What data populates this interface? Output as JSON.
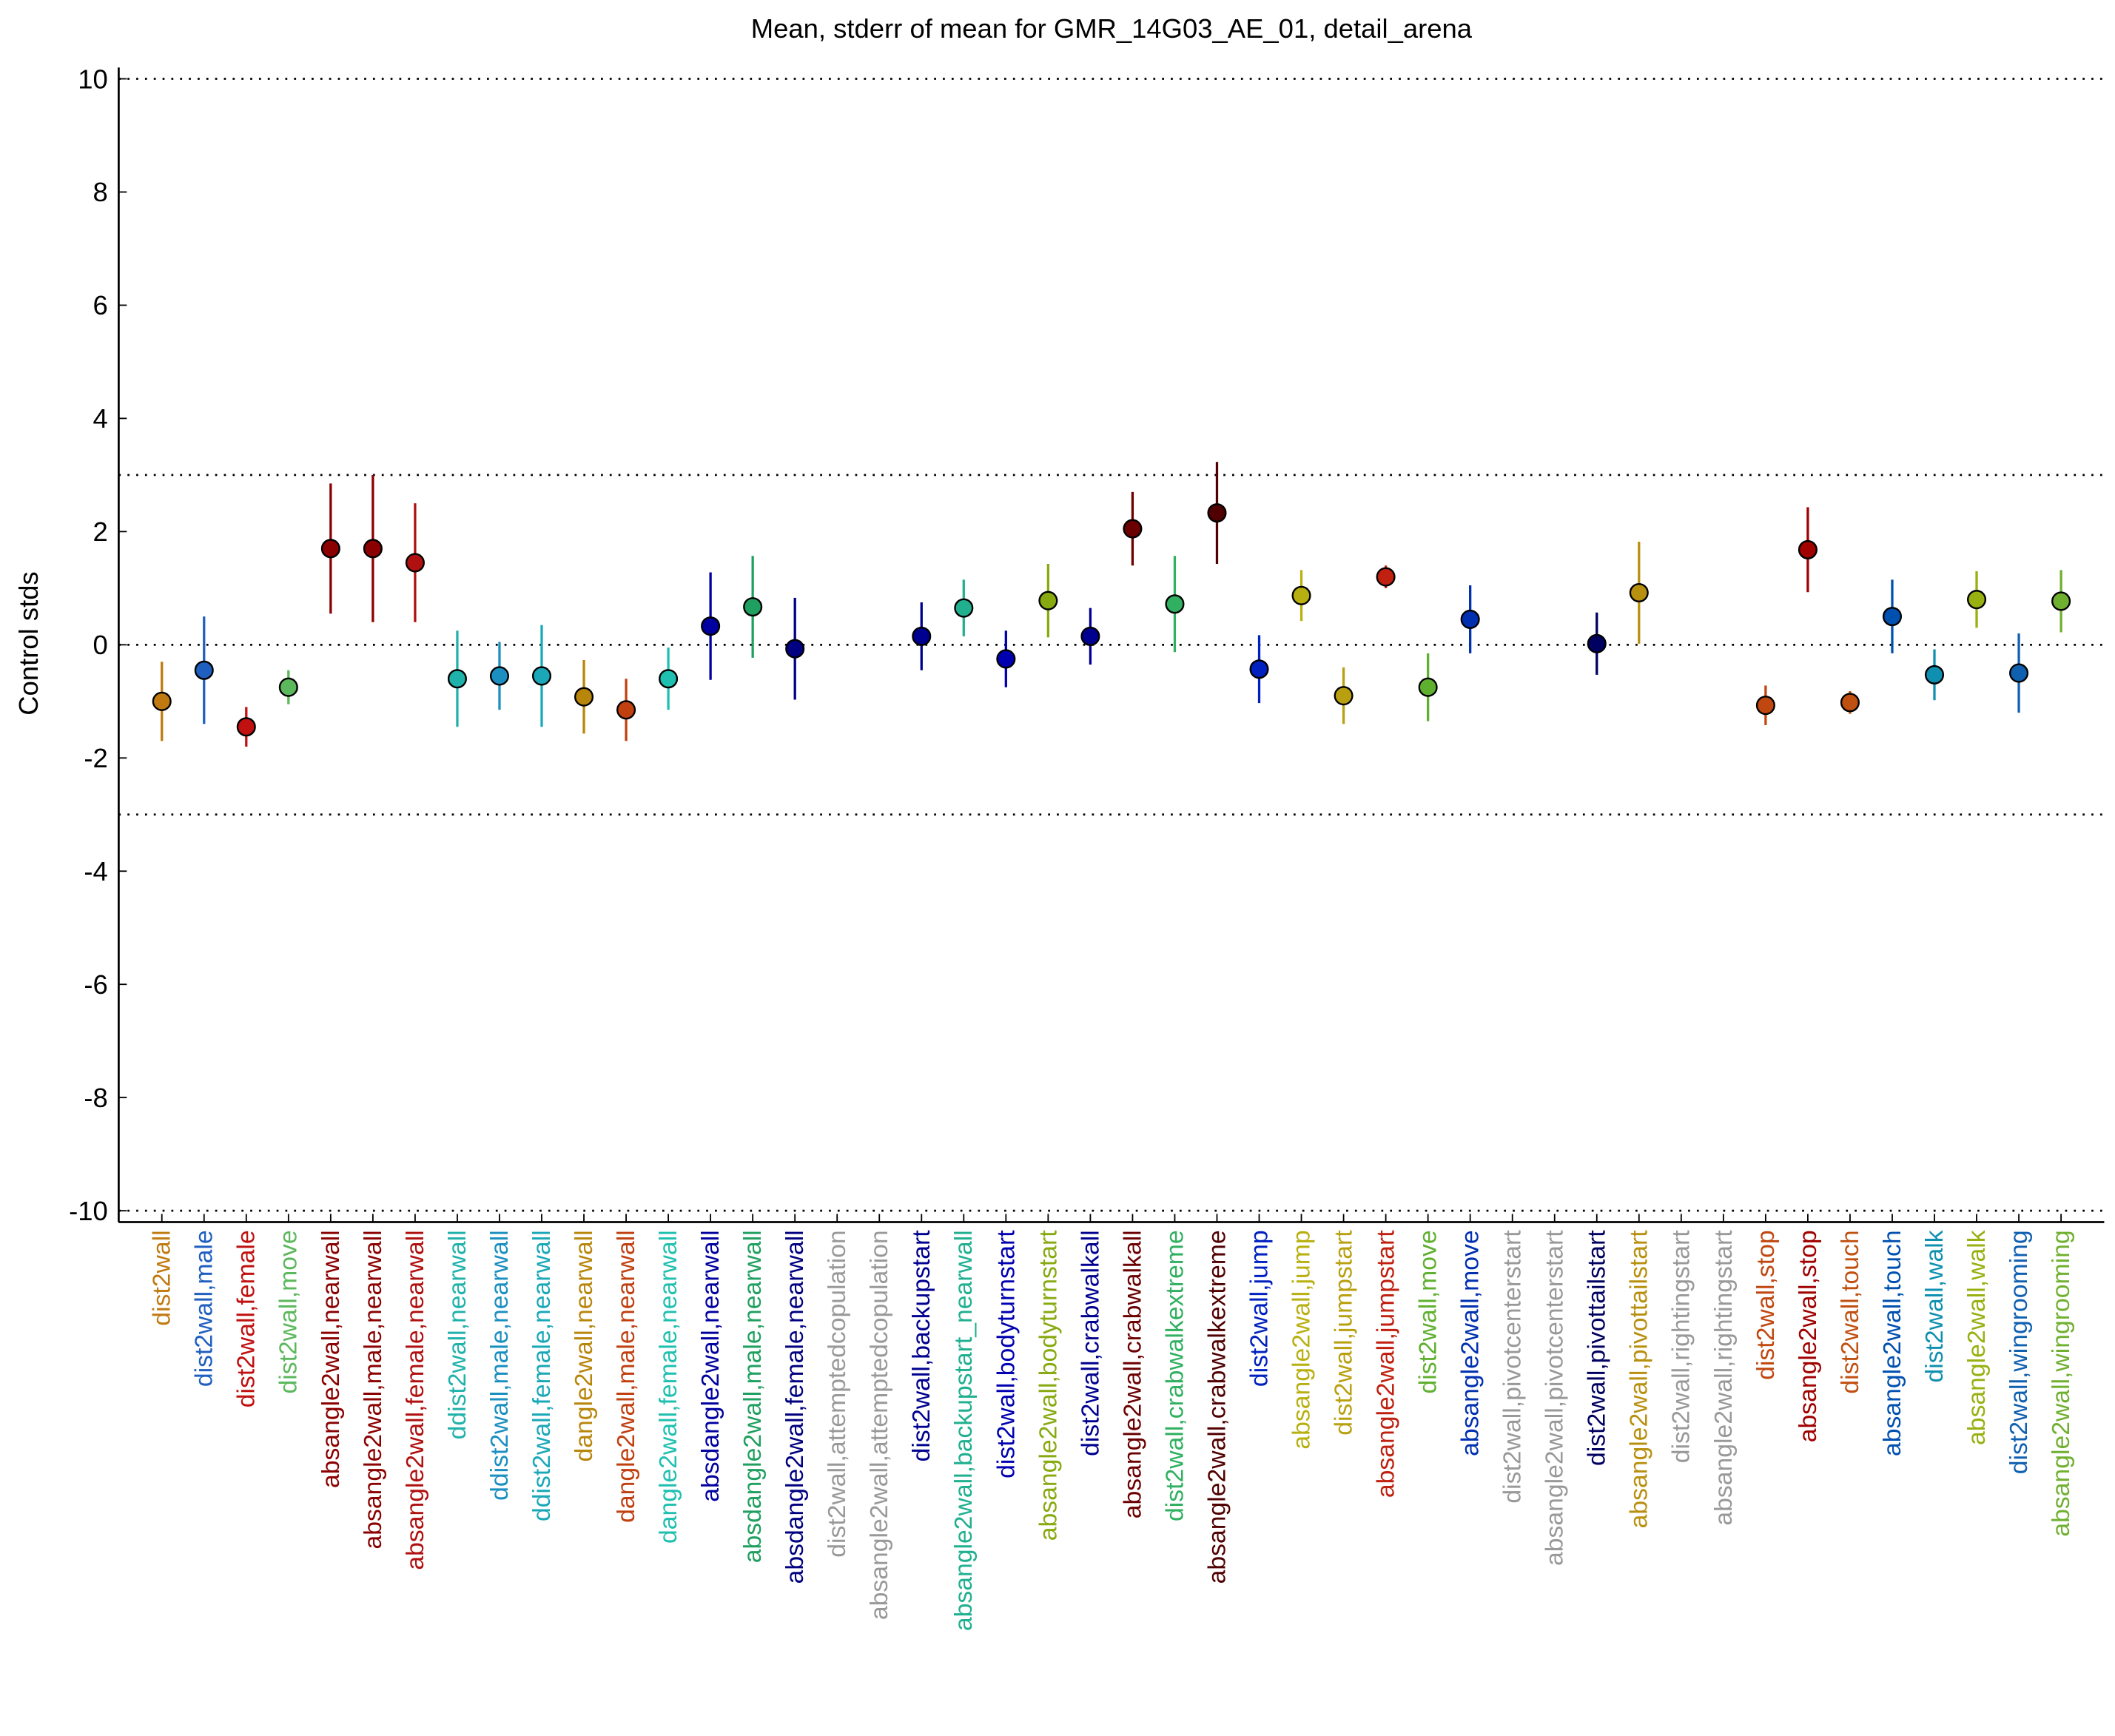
{
  "chart_data": {
    "type": "errorbar",
    "title": "Mean, stderr of mean for GMR_14G03_AE_01, detail_arena",
    "ylabel": "Control stds",
    "categories": [
      "dist2wall",
      "dist2wall,male",
      "dist2wall,female",
      "dist2wall,move",
      "absangle2wall,nearwall",
      "absangle2wall,male,nearwall",
      "absangle2wall,female,nearwall",
      "ddist2wall,nearwall",
      "ddist2wall,male,nearwall",
      "ddist2wall,female,nearwall",
      "dangle2wall,nearwall",
      "dangle2wall,male,nearwall",
      "dangle2wall,female,nearwall",
      "absdangle2wall,nearwall",
      "absdangle2wall,male,nearwall",
      "absdangle2wall,female,nearwall",
      "dist2wall,attemptedcopulation",
      "absangle2wall,attemptedcopulation",
      "dist2wall,backupstart",
      "absangle2wall,backupstart_nearwall",
      "dist2wall,bodyturnstart",
      "absangle2wall,bodyturnstart",
      "dist2wall,crabwalkall",
      "absangle2wall,crabwalkall",
      "dist2wall,crabwalkextreme",
      "absangle2wall,crabwalkextreme",
      "dist2wall,jump",
      "absangle2wall,jump",
      "dist2wall,jumpstart",
      "absangle2wall,jumpstart",
      "dist2wall,move",
      "absangle2wall,move",
      "dist2wall,pivotcenterstart",
      "absangle2wall,pivotcenterstart",
      "dist2wall,pivottailstart",
      "absangle2wall,pivottailstart",
      "dist2wall,rightingstart",
      "absangle2wall,rightingstart",
      "dist2wall,stop",
      "absangle2wall,stop",
      "dist2wall,touch",
      "absangle2wall,touch",
      "dist2wall,walk",
      "absangle2wall,walk",
      "dist2wall,wingrooming",
      "absangle2wall,wingrooming"
    ],
    "values": [
      -1.0,
      -0.45,
      -1.45,
      -0.75,
      1.7,
      1.7,
      1.45,
      -0.6,
      -0.55,
      -0.55,
      -0.92,
      -1.15,
      -0.6,
      0.33,
      0.67,
      -0.07,
      null,
      null,
      0.15,
      0.65,
      -0.25,
      0.78,
      0.15,
      2.05,
      0.72,
      2.33,
      -0.43,
      0.87,
      -0.9,
      1.2,
      -0.75,
      0.45,
      null,
      null,
      0.02,
      0.92,
      null,
      null,
      -1.07,
      1.68,
      -1.02,
      0.5,
      -0.53,
      0.8,
      -0.5,
      0.77
    ],
    "errors": [
      0.7,
      0.95,
      0.35,
      0.3,
      1.15,
      1.3,
      1.05,
      0.85,
      0.6,
      0.9,
      0.65,
      0.55,
      0.55,
      0.95,
      0.9,
      0.9,
      null,
      null,
      0.6,
      0.5,
      0.5,
      0.65,
      0.5,
      0.65,
      0.85,
      0.9,
      0.6,
      0.45,
      0.5,
      0.2,
      0.6,
      0.6,
      null,
      null,
      0.55,
      0.9,
      null,
      null,
      0.35,
      0.75,
      0.2,
      0.65,
      0.45,
      0.5,
      0.7,
      0.55
    ],
    "colors": [
      "#c07a10",
      "#1f5fbf",
      "#c01010",
      "#5cb85c",
      "#8b0000",
      "#8b0000",
      "#b01010",
      "#20b2aa",
      "#1a8fc0",
      "#1aa8b8",
      "#b8860b",
      "#c04010",
      "#20c0b0",
      "#0000a0",
      "#20a060",
      "#000080",
      "#999999",
      "#999999",
      "#000090",
      "#20b090",
      "#0000b0",
      "#88aa10",
      "#000090",
      "#6b0000",
      "#30b060",
      "#500000",
      "#0020c0",
      "#b8b010",
      "#b8a010",
      "#c02010",
      "#60b030",
      "#0030b0",
      "#999999",
      "#999999",
      "#000060",
      "#b89010",
      "#999999",
      "#999999",
      "#c04810",
      "#a00000",
      "#c05010",
      "#0050b0",
      "#1090b0",
      "#98b010",
      "#1060b0",
      "#70b030"
    ],
    "ylim": [
      -10.2,
      10.2
    ],
    "yticks": [
      -10,
      -8,
      -6,
      -4,
      -2,
      0,
      2,
      4,
      6,
      8,
      10
    ],
    "reference_lines": [
      -10,
      -3,
      0,
      3,
      10
    ]
  }
}
